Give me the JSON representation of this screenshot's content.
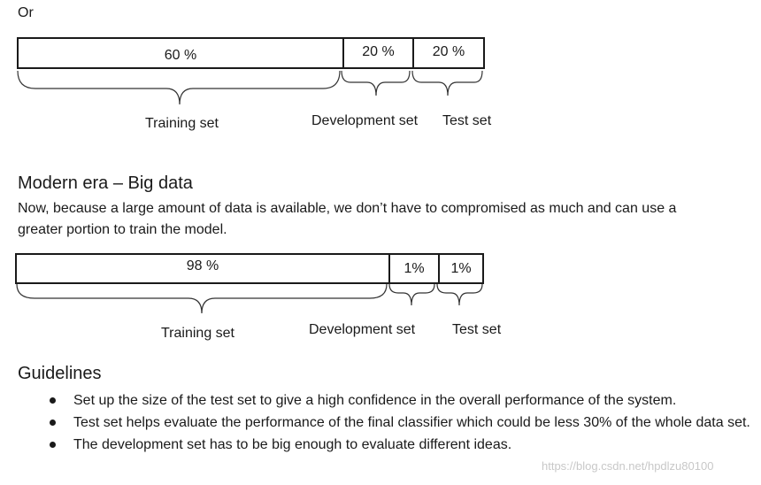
{
  "intro_text": "Or",
  "split1": {
    "segments": [
      {
        "label": "60 %",
        "value": 60
      },
      {
        "label": "20 %",
        "value": 20
      },
      {
        "label": "20 %",
        "value": 20
      }
    ],
    "labels": {
      "training": "Training set",
      "development": "Development set",
      "test": "Test set"
    }
  },
  "modern": {
    "heading": "Modern era – Big data",
    "paragraph_line1": "Now, because a large amount of data is available, we don’t have to compromised as much and can use a",
    "paragraph_line2": "greater portion to train the model."
  },
  "split2": {
    "segments": [
      {
        "label": "98 %",
        "value": 98
      },
      {
        "label": "1%",
        "value": 1
      },
      {
        "label": "1%",
        "value": 1
      }
    ],
    "labels": {
      "training": "Training set",
      "development": "Development set",
      "test": "Test set"
    }
  },
  "guidelines": {
    "heading": "Guidelines",
    "items": [
      "Set up the size of the test set to give a high confidence in the overall performance of the system.",
      "Test set helps evaluate the performance of the final classifier which could be less 30% of the whole data set.",
      "The development set has to be big enough to evaluate different ideas."
    ]
  },
  "watermark": "https://blog.csdn.net/hpdlzu80100"
}
